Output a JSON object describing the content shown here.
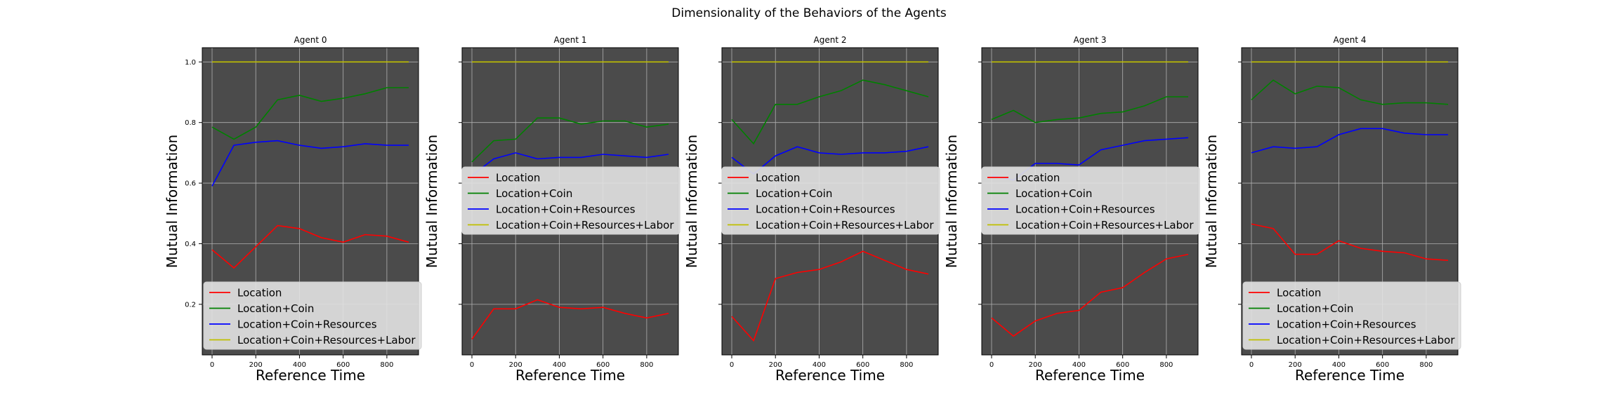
{
  "figure_title": "Dimensionality of the Behaviors of the Agents",
  "chart_data": [
    {
      "type": "line",
      "title": "Agent 0",
      "xlabel": "Reference Time",
      "ylabel": "Mutual Information",
      "xlim": [
        -45,
        945
      ],
      "ylim": [
        0.033,
        1.047
      ],
      "xticks": [
        0,
        200,
        400,
        600,
        800
      ],
      "yticks": [
        0.2,
        0.4,
        0.6,
        0.8,
        1.0
      ],
      "ytick_labels": [
        "0.2",
        "0.4",
        "0.6",
        "0.8",
        "1.0"
      ],
      "grid": true,
      "legend_position": "lower right",
      "x": [
        0,
        100,
        200,
        300,
        400,
        500,
        600,
        700,
        800,
        900
      ],
      "series": [
        {
          "name": "Location",
          "color": "#ff0000",
          "values": [
            0.38,
            0.32,
            0.39,
            0.46,
            0.45,
            0.42,
            0.405,
            0.43,
            0.425,
            0.405
          ]
        },
        {
          "name": "Location+Coin",
          "color": "#008000",
          "values": [
            0.785,
            0.745,
            0.785,
            0.875,
            0.89,
            0.87,
            0.88,
            0.895,
            0.915,
            0.915
          ]
        },
        {
          "name": "Location+Coin+Resources",
          "color": "#0000ff",
          "values": [
            0.59,
            0.725,
            0.735,
            0.74,
            0.725,
            0.715,
            0.72,
            0.73,
            0.725,
            0.725
          ]
        },
        {
          "name": "Location+Coin+Resources+Labor",
          "color": "#bfbf00",
          "values": [
            1.0,
            1.0,
            1.0,
            1.0,
            1.0,
            1.0,
            1.0,
            1.0,
            1.0,
            1.0
          ]
        }
      ]
    },
    {
      "type": "line",
      "title": "Agent 1",
      "xlabel": "Reference Time",
      "ylabel": "Mutual Information",
      "xlim": [
        -45,
        945
      ],
      "ylim": [
        0.033,
        1.047
      ],
      "xticks": [
        0,
        200,
        400,
        600,
        800
      ],
      "yticks": [
        0.2,
        0.4,
        0.6,
        0.8,
        1.0
      ],
      "ytick_labels": [],
      "grid": true,
      "legend_position": "center",
      "x": [
        0,
        100,
        200,
        300,
        400,
        500,
        600,
        700,
        800,
        900
      ],
      "series": [
        {
          "name": "Location",
          "color": "#ff0000",
          "values": [
            0.085,
            0.185,
            0.185,
            0.215,
            0.19,
            0.185,
            0.19,
            0.17,
            0.155,
            0.17
          ]
        },
        {
          "name": "Location+Coin",
          "color": "#008000",
          "values": [
            0.67,
            0.74,
            0.745,
            0.815,
            0.815,
            0.795,
            0.805,
            0.805,
            0.785,
            0.795
          ]
        },
        {
          "name": "Location+Coin+Resources",
          "color": "#0000ff",
          "values": [
            0.625,
            0.68,
            0.7,
            0.68,
            0.685,
            0.685,
            0.695,
            0.69,
            0.685,
            0.695
          ]
        },
        {
          "name": "Location+Coin+Resources+Labor",
          "color": "#bfbf00",
          "values": [
            1.0,
            1.0,
            1.0,
            1.0,
            1.0,
            1.0,
            1.0,
            1.0,
            1.0,
            1.0
          ]
        }
      ]
    },
    {
      "type": "line",
      "title": "Agent 2",
      "xlabel": "Reference Time",
      "ylabel": "Mutual Information",
      "xlim": [
        -45,
        945
      ],
      "ylim": [
        0.033,
        1.047
      ],
      "xticks": [
        0,
        200,
        400,
        600,
        800
      ],
      "yticks": [
        0.2,
        0.4,
        0.6,
        0.8,
        1.0
      ],
      "ytick_labels": [],
      "grid": true,
      "legend_position": "center",
      "x": [
        0,
        100,
        200,
        300,
        400,
        500,
        600,
        700,
        800,
        900
      ],
      "series": [
        {
          "name": "Location",
          "color": "#ff0000",
          "values": [
            0.16,
            0.08,
            0.285,
            0.305,
            0.315,
            0.34,
            0.375,
            0.345,
            0.315,
            0.3
          ]
        },
        {
          "name": "Location+Coin",
          "color": "#008000",
          "values": [
            0.81,
            0.73,
            0.86,
            0.86,
            0.885,
            0.905,
            0.94,
            0.925,
            0.905,
            0.885
          ]
        },
        {
          "name": "Location+Coin+Resources",
          "color": "#0000ff",
          "values": [
            0.685,
            0.63,
            0.69,
            0.72,
            0.7,
            0.695,
            0.7,
            0.7,
            0.705,
            0.72
          ]
        },
        {
          "name": "Location+Coin+Resources+Labor",
          "color": "#bfbf00",
          "values": [
            1.0,
            1.0,
            1.0,
            1.0,
            1.0,
            1.0,
            1.0,
            1.0,
            1.0,
            1.0
          ]
        }
      ]
    },
    {
      "type": "line",
      "title": "Agent 3",
      "xlabel": "Reference Time",
      "ylabel": "Mutual Information",
      "xlim": [
        -45,
        945
      ],
      "ylim": [
        0.033,
        1.047
      ],
      "xticks": [
        0,
        200,
        400,
        600,
        800
      ],
      "yticks": [
        0.2,
        0.4,
        0.6,
        0.8,
        1.0
      ],
      "ytick_labels": [],
      "grid": true,
      "legend_position": "center",
      "x": [
        0,
        100,
        200,
        300,
        400,
        500,
        600,
        700,
        800,
        900
      ],
      "series": [
        {
          "name": "Location",
          "color": "#ff0000",
          "values": [
            0.155,
            0.095,
            0.145,
            0.17,
            0.18,
            0.24,
            0.255,
            0.305,
            0.35,
            0.365
          ]
        },
        {
          "name": "Location+Coin",
          "color": "#008000",
          "values": [
            0.81,
            0.84,
            0.8,
            0.81,
            0.815,
            0.83,
            0.835,
            0.855,
            0.885,
            0.885
          ]
        },
        {
          "name": "Location+Coin+Resources",
          "color": "#0000ff",
          "values": [
            0.625,
            0.61,
            0.665,
            0.665,
            0.66,
            0.71,
            0.725,
            0.74,
            0.745,
            0.75
          ]
        },
        {
          "name": "Location+Coin+Resources+Labor",
          "color": "#bfbf00",
          "values": [
            1.0,
            1.0,
            1.0,
            1.0,
            1.0,
            1.0,
            1.0,
            1.0,
            1.0,
            1.0
          ]
        }
      ]
    },
    {
      "type": "line",
      "title": "Agent 4",
      "xlabel": "Reference Time",
      "ylabel": "Mutual Information",
      "xlim": [
        -45,
        945
      ],
      "ylim": [
        0.033,
        1.047
      ],
      "xticks": [
        0,
        200,
        400,
        600,
        800
      ],
      "yticks": [
        0.2,
        0.4,
        0.6,
        0.8,
        1.0
      ],
      "ytick_labels": [],
      "grid": true,
      "legend_position": "lower right",
      "x": [
        0,
        100,
        200,
        300,
        400,
        500,
        600,
        700,
        800,
        900
      ],
      "series": [
        {
          "name": "Location",
          "color": "#ff0000",
          "values": [
            0.465,
            0.45,
            0.365,
            0.365,
            0.41,
            0.385,
            0.375,
            0.37,
            0.35,
            0.345
          ]
        },
        {
          "name": "Location+Coin",
          "color": "#008000",
          "values": [
            0.875,
            0.94,
            0.895,
            0.92,
            0.915,
            0.875,
            0.86,
            0.865,
            0.865,
            0.86
          ]
        },
        {
          "name": "Location+Coin+Resources",
          "color": "#0000ff",
          "values": [
            0.7,
            0.72,
            0.715,
            0.72,
            0.76,
            0.78,
            0.78,
            0.765,
            0.76,
            0.76
          ]
        },
        {
          "name": "Location+Coin+Resources+Labor",
          "color": "#bfbf00",
          "values": [
            1.0,
            1.0,
            1.0,
            1.0,
            1.0,
            1.0,
            1.0,
            1.0,
            1.0,
            1.0
          ]
        }
      ]
    }
  ]
}
